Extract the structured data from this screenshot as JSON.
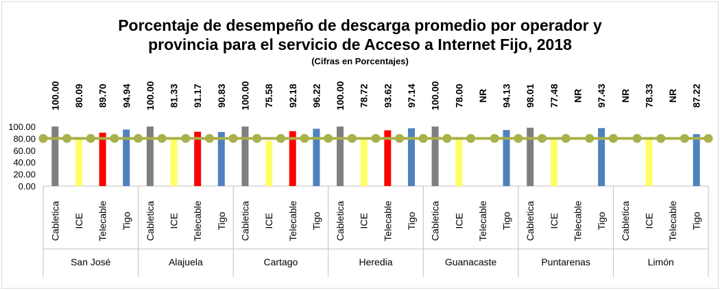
{
  "chart_data": {
    "type": "bar",
    "title": "Porcentaje de desempeño de descarga promedio por operador y",
    "title_line2": "provincia para el servicio de Acceso a Internet Fijo, 2018",
    "subtitle": "(Cifras en Porcentajes)",
    "ylim": [
      0,
      100
    ],
    "yticks": [
      "100.00",
      "80.00",
      "60.00",
      "40.00",
      "20.00",
      "0.00"
    ],
    "grid": false,
    "legend": "none",
    "reference_line": {
      "value": 80,
      "color": "#a9b14a"
    },
    "na_label": "NR",
    "operator_colors": {
      "Cabletica": "#7f7f7f",
      "ICE": "#ffff66",
      "Telecable": "#ff0000",
      "Tigo": "#4f81bd"
    },
    "groups": [
      {
        "name": "San José",
        "bars": [
          {
            "operator": "Cabletica",
            "value": 100.0,
            "label": "100.00"
          },
          {
            "operator": "ICE",
            "value": 80.09,
            "label": "80.09"
          },
          {
            "operator": "Telecable",
            "value": 89.7,
            "label": "89.70"
          },
          {
            "operator": "Tigo",
            "value": 94.94,
            "label": "94.94"
          }
        ]
      },
      {
        "name": "Alajuela",
        "bars": [
          {
            "operator": "Cabletica",
            "value": 100.0,
            "label": "100.00"
          },
          {
            "operator": "ICE",
            "value": 81.33,
            "label": "81.33"
          },
          {
            "operator": "Telecable",
            "value": 91.17,
            "label": "91.17"
          },
          {
            "operator": "Tigo",
            "value": 90.83,
            "label": "90.83"
          }
        ]
      },
      {
        "name": "Cartago",
        "bars": [
          {
            "operator": "Cabletica",
            "value": 100.0,
            "label": "100.00"
          },
          {
            "operator": "ICE",
            "value": 75.58,
            "label": "75.58"
          },
          {
            "operator": "Telecable",
            "value": 92.18,
            "label": "92.18"
          },
          {
            "operator": "Tigo",
            "value": 96.22,
            "label": "96.22"
          }
        ]
      },
      {
        "name": "Heredia",
        "bars": [
          {
            "operator": "Cabletica",
            "value": 100.0,
            "label": "100.00"
          },
          {
            "operator": "ICE",
            "value": 78.72,
            "label": "78.72"
          },
          {
            "operator": "Telecable",
            "value": 93.62,
            "label": "93.62"
          },
          {
            "operator": "Tigo",
            "value": 97.14,
            "label": "97.14"
          }
        ]
      },
      {
        "name": "Guanacaste",
        "bars": [
          {
            "operator": "Cabletica",
            "value": 100.0,
            "label": "100.00"
          },
          {
            "operator": "ICE",
            "value": 78.0,
            "label": "78.00"
          },
          {
            "operator": "Telecable",
            "value": null,
            "label": "NR"
          },
          {
            "operator": "Tigo",
            "value": 94.13,
            "label": "94.13"
          }
        ]
      },
      {
        "name": "Puntarenas",
        "bars": [
          {
            "operator": "Cabletica",
            "value": 98.01,
            "label": "98.01"
          },
          {
            "operator": "ICE",
            "value": 77.48,
            "label": "77.48"
          },
          {
            "operator": "Telecable",
            "value": null,
            "label": "NR"
          },
          {
            "operator": "Tigo",
            "value": 97.43,
            "label": "97.43"
          }
        ]
      },
      {
        "name": "Limón",
        "bars": [
          {
            "operator": "Cabletica",
            "value": null,
            "label": "NR"
          },
          {
            "operator": "ICE",
            "value": 78.33,
            "label": "78.33"
          },
          {
            "operator": "Telecable",
            "value": null,
            "label": "NR"
          },
          {
            "operator": "Tigo",
            "value": 87.22,
            "label": "87.22"
          }
        ]
      }
    ]
  }
}
